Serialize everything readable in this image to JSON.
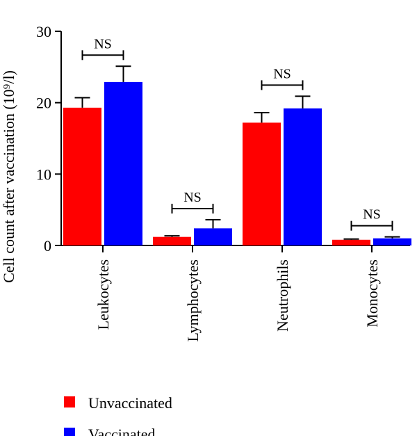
{
  "chart_data": {
    "type": "bar",
    "categories": [
      "Leukocytes",
      "Lymphocytes",
      "Neutrophils",
      "Monocytes"
    ],
    "series": [
      {
        "name": "Unvaccinated",
        "color": "#ff0000",
        "values": [
          19.3,
          1.2,
          17.2,
          0.8
        ],
        "errors": [
          1.4,
          0.15,
          1.4,
          0.1
        ]
      },
      {
        "name": "Vaccinated",
        "color": "#0000ff",
        "values": [
          22.9,
          2.4,
          19.2,
          1.0
        ],
        "errors": [
          2.2,
          1.2,
          1.7,
          0.2
        ]
      }
    ],
    "ylabel": "Cell count after vaccination (10⁹/l)",
    "ylim": [
      0,
      30
    ],
    "yticks": [
      0,
      10,
      20,
      30
    ],
    "ytick_labels": [
      "0",
      "10",
      "20",
      "30"
    ],
    "annotations": [
      {
        "category": "Leukocytes",
        "text": "NS"
      },
      {
        "category": "Lymphocytes",
        "text": "NS"
      },
      {
        "category": "Neutrophils",
        "text": "NS"
      },
      {
        "category": "Monocytes",
        "text": "NS"
      }
    ],
    "grid": false,
    "legend": "bottom-left"
  }
}
